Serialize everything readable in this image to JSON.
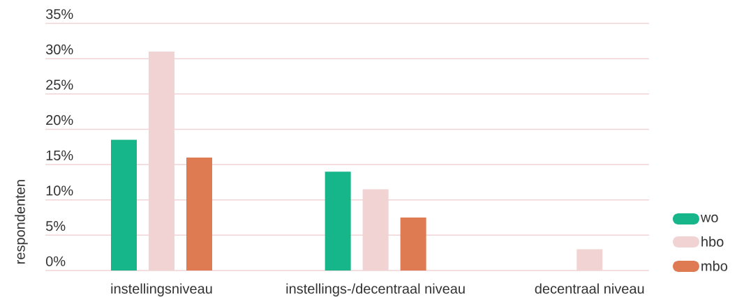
{
  "chart_data": {
    "type": "bar",
    "ylabel": "respondenten",
    "categories": [
      "instellingsniveau",
      "instellings-/decentraal niveau",
      "decentraal niveau"
    ],
    "series": [
      {
        "name": "wo",
        "color": "#16b68a",
        "values": [
          18.5,
          14,
          0
        ]
      },
      {
        "name": "hbo",
        "color": "#f1d3d4",
        "values": [
          31,
          11.5,
          3
        ]
      },
      {
        "name": "mbo",
        "color": "#df7b53",
        "values": [
          16,
          7.5,
          0
        ]
      }
    ],
    "ylim": [
      0,
      35
    ],
    "yticks": [
      {
        "value": 0,
        "label": "0%"
      },
      {
        "value": 5,
        "label": "5%"
      },
      {
        "value": 10,
        "label": "10%"
      },
      {
        "value": 15,
        "label": "15%"
      },
      {
        "value": 20,
        "label": "20%"
      },
      {
        "value": 25,
        "label": "25%"
      },
      {
        "value": 30,
        "label": "30%"
      },
      {
        "value": 35,
        "label": "35%"
      }
    ],
    "grid": "y",
    "legend": "right"
  }
}
